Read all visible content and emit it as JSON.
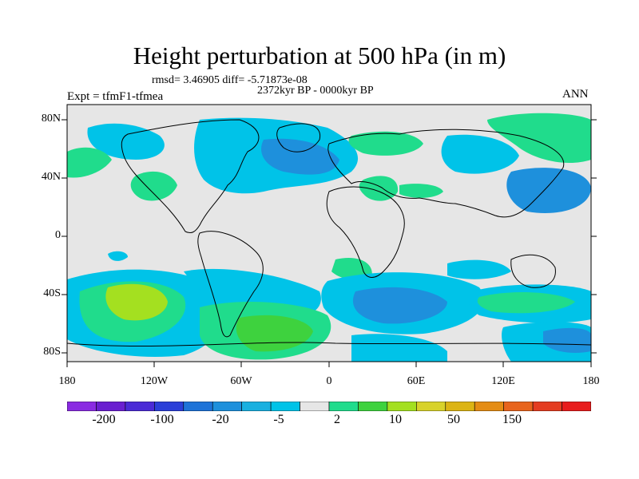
{
  "title": "Height perturbation at 500 hPa (in m)",
  "stats": "rmsd= 3.46905 diff= -5.71873e-08",
  "period": "2372kyr BP - 0000kyr BP",
  "experiment": "Expt = tfmF1-tfmea",
  "season": "ANN",
  "lat_labels": [
    "80N",
    "40N",
    "0",
    "40S",
    "80S"
  ],
  "lon_labels": [
    "180",
    "120W",
    "60W",
    "0",
    "60E",
    "120E",
    "180"
  ],
  "colorbar": {
    "colors": [
      "#8a2be2",
      "#6a1fd0",
      "#4b2bd6",
      "#2b3fd8",
      "#1e73d8",
      "#1e90dc",
      "#19b0e0",
      "#00c3e8",
      "#e6e6e6",
      "#20dc8c",
      "#3ed23e",
      "#a4e020",
      "#d8d22a",
      "#dcb414",
      "#e48c14",
      "#e8641c",
      "#e43c20",
      "#e81c1c"
    ],
    "labels": [
      "-200",
      "-100",
      "-20",
      "-5",
      "2",
      "10",
      "50",
      "150"
    ]
  },
  "palette": {
    "neutral": "#e6e6e6",
    "cyan": "#00c3e8",
    "blue_light": "#19b0e0",
    "blue_mid": "#1e90dc",
    "green": "#20dc8c",
    "green_mid": "#3ed23e",
    "yellow_green": "#a4e020"
  }
}
